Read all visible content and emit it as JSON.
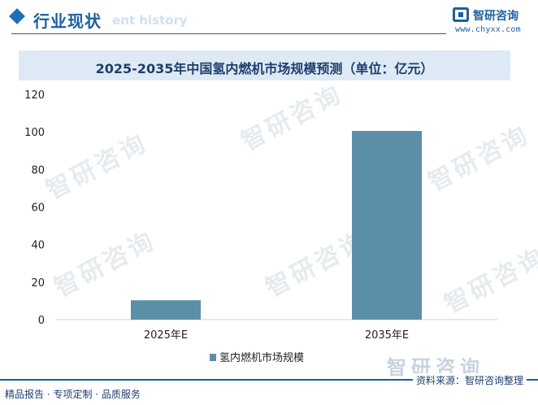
{
  "header": {
    "title": "行业现状",
    "subtitle": "ent history",
    "brand_name": "智研咨询",
    "brand_url": "www.chyxx.com"
  },
  "watermark_text": "智研咨询",
  "footer": {
    "left": "精品报告 · 专项定制 · 品质服务",
    "source": "资料来源：智研咨询整理",
    "brand_big": "智研咨询"
  },
  "chart_data": {
    "type": "bar",
    "title": "2025-2035年中国氢内燃机市场规模预测（单位：亿元）",
    "categories": [
      "2025年E",
      "2035年E"
    ],
    "series": [
      {
        "name": "氢内燃机市场规模",
        "values": [
          10.3,
          100.5
        ]
      }
    ],
    "yticks": [
      "0",
      "20",
      "40",
      "60",
      "80",
      "100",
      "120"
    ],
    "ylim": [
      0,
      120
    ],
    "xlabel": "",
    "ylabel": "",
    "grid": false,
    "legend": "bottom",
    "bar_color": "#5b8fa8"
  }
}
